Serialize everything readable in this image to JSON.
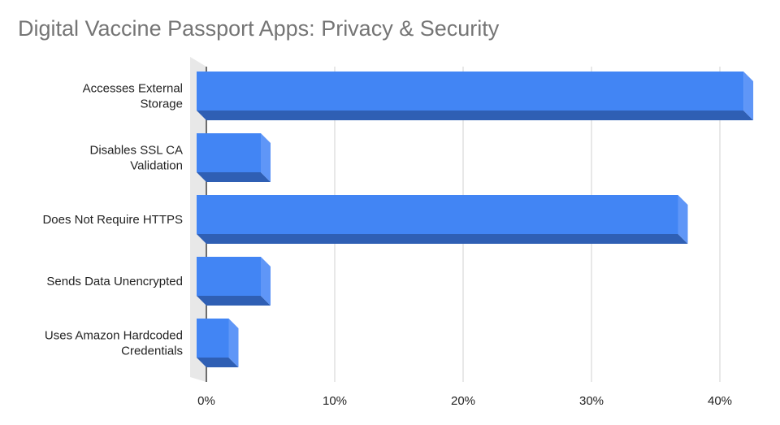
{
  "chart_data": {
    "type": "bar",
    "orientation": "horizontal",
    "title": "Digital Vaccine Passport Apps: Privacy & Security",
    "xlabel": "",
    "ylabel": "",
    "categories": [
      [
        "Accesses External",
        "Storage"
      ],
      [
        "Disables SSL CA",
        "Validation"
      ],
      [
        "Does Not Require HTTPS"
      ],
      [
        "Sends Data Unencrypted"
      ],
      [
        "Uses Amazon Hardcoded",
        "Credentials"
      ]
    ],
    "values": [
      42.6,
      5,
      37.5,
      5,
      2.5
    ],
    "xlim": [
      0,
      45
    ],
    "ticks": [
      0,
      10,
      20,
      30,
      40
    ],
    "tick_labels": [
      "0%",
      "10%",
      "20%",
      "30%",
      "40%"
    ],
    "grid": true,
    "legend": "none",
    "style": "3d",
    "colors": {
      "bar_front": "#4285f4",
      "bar_side": "#5f96f7",
      "bar_bottom": "#2f5fb4",
      "gridline": "#d0d0d0",
      "floor": "#e8e8e8",
      "title": "#757575",
      "text": "#222222"
    }
  }
}
